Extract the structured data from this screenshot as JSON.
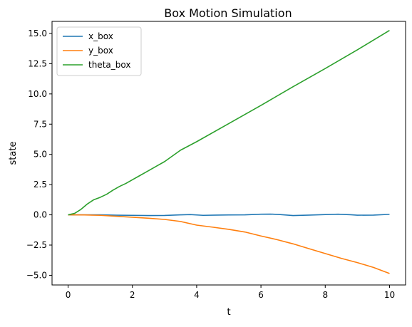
{
  "chart_data": {
    "type": "line",
    "title": "Box Motion Simulation",
    "xlabel": "t",
    "ylabel": "state",
    "xlim": [
      -0.5,
      10.5
    ],
    "ylim": [
      -5.8,
      16.0
    ],
    "x_ticks": [
      0,
      2,
      4,
      6,
      8,
      10
    ],
    "x_tick_labels": [
      "0",
      "2",
      "4",
      "6",
      "8",
      "10"
    ],
    "y_ticks": [
      -5.0,
      -2.5,
      0.0,
      2.5,
      5.0,
      7.5,
      10.0,
      12.5,
      15.0
    ],
    "y_tick_labels": [
      "−5.0",
      "−2.5",
      "0.0",
      "2.5",
      "5.0",
      "7.5",
      "10.0",
      "12.5",
      "15.0"
    ],
    "grid": false,
    "legend_position": "upper-left",
    "series": [
      {
        "name": "x_box",
        "color": "#1f77b4",
        "x": [
          0,
          0.5,
          1.0,
          1.5,
          2.0,
          2.5,
          3.0,
          3.5,
          3.8,
          4.2,
          4.6,
          5.0,
          5.5,
          6.0,
          6.3,
          6.6,
          7.0,
          7.5,
          8.0,
          8.4,
          8.8,
          9.0,
          9.5,
          10.0
        ],
        "y": [
          0.0,
          0.0,
          0.0,
          -0.03,
          -0.04,
          -0.06,
          -0.05,
          0.0,
          0.02,
          -0.04,
          -0.02,
          -0.01,
          0.0,
          0.05,
          0.06,
          0.02,
          -0.06,
          -0.02,
          0.02,
          0.05,
          0.01,
          -0.03,
          -0.02,
          0.04
        ]
      },
      {
        "name": "y_box",
        "color": "#ff7f0e",
        "x": [
          0,
          0.5,
          1.0,
          1.5,
          2.0,
          2.5,
          3.0,
          3.5,
          4.0,
          4.5,
          5.0,
          5.5,
          6.0,
          6.5,
          7.0,
          7.5,
          8.0,
          8.5,
          9.0,
          9.5,
          10.0
        ],
        "y": [
          0.0,
          -0.01,
          -0.04,
          -0.12,
          -0.2,
          -0.28,
          -0.38,
          -0.55,
          -0.85,
          -1.02,
          -1.2,
          -1.42,
          -1.75,
          -2.05,
          -2.4,
          -2.8,
          -3.2,
          -3.6,
          -3.95,
          -4.35,
          -4.85
        ]
      },
      {
        "name": "theta_box",
        "color": "#2ca02c",
        "x": [
          0,
          0.2,
          0.4,
          0.6,
          0.8,
          1.0,
          1.2,
          1.4,
          1.6,
          1.8,
          2.0,
          2.2,
          2.4,
          2.6,
          2.8,
          3.0,
          3.5,
          4.0,
          5.0,
          6.0,
          7.0,
          8.0,
          9.0,
          10.0
        ],
        "y": [
          0.0,
          0.12,
          0.45,
          0.9,
          1.25,
          1.45,
          1.7,
          2.05,
          2.35,
          2.6,
          2.9,
          3.2,
          3.5,
          3.8,
          4.1,
          4.4,
          5.35,
          6.05,
          7.55,
          9.05,
          10.6,
          12.1,
          13.65,
          15.25
        ]
      }
    ]
  }
}
